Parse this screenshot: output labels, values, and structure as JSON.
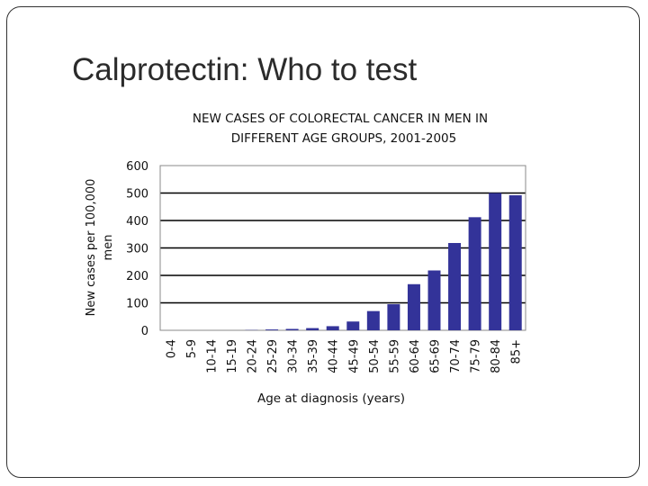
{
  "slide": {
    "title": "Calprotectin: Who to test"
  },
  "chart_data": {
    "type": "bar",
    "title_lines": [
      "NEW CASES OF COLORECTAL CANCER IN MEN IN",
      "DIFFERENT AGE GROUPS, 2001-2005"
    ],
    "xlabel": "Age at diagnosis (years)",
    "ylabel_lines": [
      "New cases per 100,000",
      "men"
    ],
    "categories": [
      "0-4",
      "5-9",
      "10-14",
      "15-19",
      "20-24",
      "25-29",
      "30-34",
      "35-39",
      "40-44",
      "45-49",
      "50-54",
      "55-59",
      "60-64",
      "65-69",
      "70-74",
      "75-79",
      "80-84",
      "85+"
    ],
    "values": [
      0,
      0,
      0,
      0,
      1,
      3,
      5,
      8,
      15,
      32,
      70,
      95,
      168,
      218,
      318,
      412,
      500,
      492
    ],
    "ylim": [
      0,
      600
    ],
    "yticks": [
      0,
      100,
      200,
      300,
      400,
      500,
      600
    ],
    "grid": "horizontal",
    "bar_color": "#333399"
  }
}
